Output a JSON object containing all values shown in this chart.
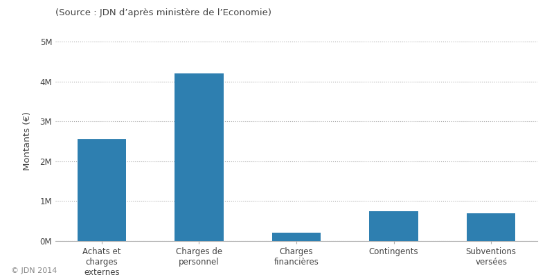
{
  "categories": [
    "Achats et\ncharges\nexternes",
    "Charges de\npersonnel",
    "Charges\nfinancières",
    "Contingents",
    "Subventions\nversées"
  ],
  "values": [
    2550000,
    4200000,
    200000,
    750000,
    700000
  ],
  "bar_color": "#2e7fb0",
  "ylabel": "Montants (€)",
  "ylim": [
    0,
    5000000
  ],
  "yticks": [
    0,
    1000000,
    2000000,
    3000000,
    4000000,
    5000000
  ],
  "ytick_labels": [
    "0M",
    "1M",
    "2M",
    "3M",
    "4M",
    "5M"
  ],
  "title": "(Source : JDN d’après ministère de l’Economie)",
  "footnote": "© JDN 2014",
  "background_color": "#ffffff",
  "grid_color": "#aaaaaa",
  "bar_width": 0.5
}
